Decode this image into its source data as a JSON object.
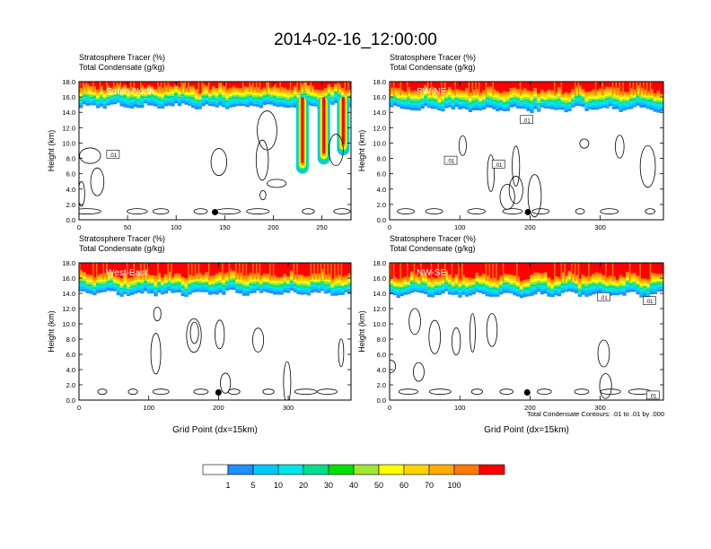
{
  "title": "2014-02-16_12:00:00",
  "colors": {
    "levels": [
      "#ffffff",
      "#1e90ff",
      "#00c8ff",
      "#00e6e6",
      "#00e08c",
      "#00e000",
      "#a0e632",
      "#ffff00",
      "#ffd200",
      "#ffaa00",
      "#ff7800",
      "#ff0000"
    ],
    "contour": "#000000",
    "frame": "#000000"
  },
  "colorbar": {
    "labels": [
      "1",
      "5",
      "10",
      "20",
      "30",
      "40",
      "50",
      "60",
      "70",
      "100"
    ]
  },
  "footnote": "Total Condensate Contours: .01 to .01 by .000",
  "chart_data": [
    {
      "type": "heatmap",
      "panel": "South-North",
      "label": "South-North",
      "subtitle1": "Stratosphere Tracer   (%)",
      "subtitle2": "Total Condensate   (g/kg)",
      "xlabel": "",
      "ylabel": "Height (km)",
      "xlim": [
        0,
        280
      ],
      "ylim": [
        0,
        18
      ],
      "xticks": [
        0,
        50,
        100,
        150,
        200,
        250
      ],
      "yticks": [
        "0.0",
        "2.0",
        "4.0",
        "6.0",
        "8.0",
        "10.0",
        "12.0",
        "14.0",
        "16.0",
        "18.0"
      ],
      "tropopause_km": 16.0,
      "intrusions": [
        {
          "x_from": 222,
          "x_to": 278,
          "bottom_km": 6.0
        }
      ],
      "contour_labels": [
        {
          "x": 35,
          "y": 8.5,
          "text": ".01"
        }
      ],
      "marker": {
        "x": 140,
        "y": 1.0
      }
    },
    {
      "type": "heatmap",
      "panel": "SW-NE",
      "label": "SW-NE",
      "subtitle1": "Stratosphere Tracer   (%)",
      "subtitle2": "Total Condensate   (g/kg)",
      "xlabel": "",
      "ylabel": "Height (km)",
      "xlim": [
        0,
        390
      ],
      "ylim": [
        0,
        18
      ],
      "xticks": [
        0,
        100,
        200,
        300
      ],
      "yticks": [
        "0.0",
        "2.0",
        "4.0",
        "6.0",
        "8.0",
        "10.0",
        "12.0",
        "14.0",
        "16.0",
        "18.0"
      ],
      "tropopause_km": 15.6,
      "intrusions": [],
      "contour_labels": [
        {
          "x": 195,
          "y": 13,
          "text": ".01"
        },
        {
          "x": 87,
          "y": 7.7,
          "text": ".01"
        },
        {
          "x": 155,
          "y": 7.2,
          "text": ".01"
        }
      ],
      "marker": {
        "x": 197,
        "y": 1.0
      }
    },
    {
      "type": "heatmap",
      "panel": "West-East",
      "label": "West-East",
      "subtitle1": "Stratosphere Tracer   (%)",
      "subtitle2": "Total Condensate   (g/kg)",
      "xlabel": "Grid Point (dx=15km)",
      "ylabel": "Height (km)",
      "xlim": [
        0,
        390
      ],
      "ylim": [
        0,
        18
      ],
      "xticks": [
        0,
        100,
        200,
        300
      ],
      "yticks": [
        "0.0",
        "2.0",
        "4.0",
        "6.0",
        "8.0",
        "10.0",
        "12.0",
        "14.0",
        "16.0",
        "18.0"
      ],
      "tropopause_km": 15.2,
      "intrusions": [],
      "contour_labels": [],
      "marker": {
        "x": 200,
        "y": 1.0
      }
    },
    {
      "type": "heatmap",
      "panel": "NW-SE",
      "label": "NW-SE",
      "subtitle1": "Stratosphere Tracer   (%)",
      "subtitle2": "Total Condensate   (g/kg)",
      "xlabel": "Grid Point (dx=15km)",
      "ylabel": "Height (km)",
      "xlim": [
        0,
        390
      ],
      "ylim": [
        0,
        18
      ],
      "xticks": [
        0,
        100,
        200,
        300
      ],
      "yticks": [
        "0.0",
        "2.0",
        "4.0",
        "6.0",
        "8.0",
        "10.0",
        "12.0",
        "14.0",
        "16.0",
        "18.0"
      ],
      "tropopause_km": 15.0,
      "intrusions": [],
      "contour_labels": [
        {
          "x": 305,
          "y": 13.5,
          "text": ".01"
        },
        {
          "x": 370,
          "y": 13,
          "text": ".01"
        },
        {
          "x": 375,
          "y": 0.6,
          "text": ".01"
        }
      ],
      "marker": {
        "x": 196,
        "y": 1.0
      }
    }
  ]
}
